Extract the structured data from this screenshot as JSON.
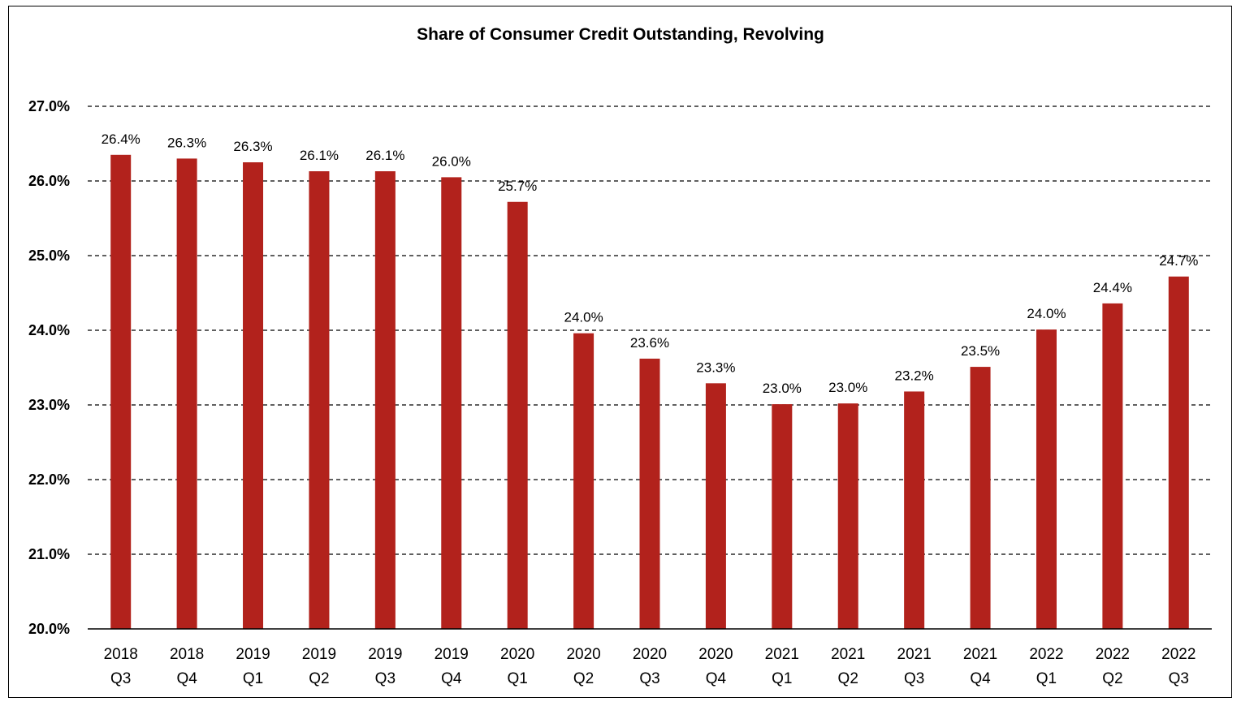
{
  "chart_data": {
    "type": "bar",
    "title": "Share of Consumer Credit Outstanding, Revolving",
    "xlabel": "",
    "ylabel": "",
    "categories": [
      [
        "2018",
        "Q3"
      ],
      [
        "2018",
        "Q4"
      ],
      [
        "2019",
        "Q1"
      ],
      [
        "2019",
        "Q2"
      ],
      [
        "2019",
        "Q3"
      ],
      [
        "2019",
        "Q4"
      ],
      [
        "2020",
        "Q1"
      ],
      [
        "2020",
        "Q2"
      ],
      [
        "2020",
        "Q3"
      ],
      [
        "2020",
        "Q4"
      ],
      [
        "2021",
        "Q1"
      ],
      [
        "2021",
        "Q2"
      ],
      [
        "2021",
        "Q3"
      ],
      [
        "2021",
        "Q4"
      ],
      [
        "2022",
        "Q1"
      ],
      [
        "2022",
        "Q2"
      ],
      [
        "2022",
        "Q3"
      ]
    ],
    "values": [
      26.35,
      26.3,
      26.25,
      26.13,
      26.13,
      26.05,
      25.72,
      23.96,
      23.62,
      23.29,
      23.01,
      23.02,
      23.18,
      23.51,
      24.01,
      24.36,
      24.72
    ],
    "data_labels": [
      "26.4%",
      "26.3%",
      "26.3%",
      "26.1%",
      "26.1%",
      "26.0%",
      "25.7%",
      "24.0%",
      "23.6%",
      "23.3%",
      "23.0%",
      "23.0%",
      "23.2%",
      "23.5%",
      "24.0%",
      "24.4%",
      "24.7%"
    ],
    "ylim": [
      20.0,
      27.0
    ],
    "yticks": [
      20.0,
      21.0,
      22.0,
      23.0,
      24.0,
      25.0,
      26.0,
      27.0
    ],
    "ytick_labels": [
      "20.0%",
      "21.0%",
      "22.0%",
      "23.0%",
      "24.0%",
      "25.0%",
      "26.0%",
      "27.0%"
    ],
    "grid": true,
    "grid_style": "dashed",
    "legend": "none",
    "bar_color": "#b2221c"
  }
}
